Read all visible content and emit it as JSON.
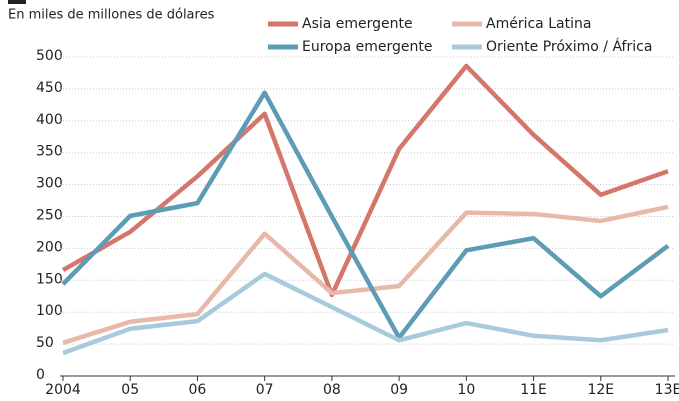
{
  "chart_data": {
    "type": "line",
    "subtitle": "En miles de millones de dólares",
    "categories": [
      "2004",
      "05",
      "06",
      "07",
      "08",
      "09",
      "10",
      "11E",
      "12E",
      "13E"
    ],
    "series": [
      {
        "name": "Asia emergente",
        "color": "#d4766a",
        "values": [
          166,
          226,
          313,
          411,
          127,
          356,
          486,
          378,
          284,
          321
        ]
      },
      {
        "name": "América Latina",
        "color": "#e8b8aa",
        "values": [
          52,
          85,
          97,
          223,
          130,
          141,
          256,
          254,
          243,
          265
        ]
      },
      {
        "name": "Europa emergente",
        "color": "#5e9bb5",
        "values": [
          144,
          251,
          271,
          444,
          250,
          60,
          197,
          216,
          125,
          204
        ]
      },
      {
        "name": "Oriente Próximo / África",
        "color": "#a8cbdb",
        "values": [
          36,
          74,
          86,
          160,
          108,
          56,
          83,
          63,
          56,
          72
        ]
      }
    ],
    "ylim": [
      0,
      500
    ],
    "yticks": [
      0,
      50,
      100,
      150,
      200,
      250,
      300,
      350,
      400,
      450,
      500
    ],
    "grid": true
  }
}
